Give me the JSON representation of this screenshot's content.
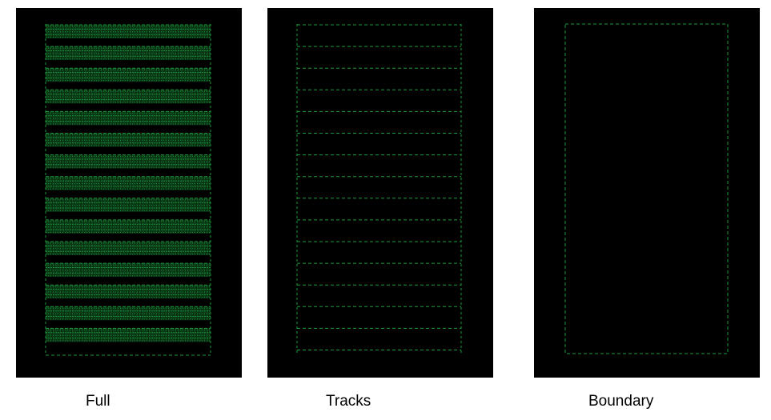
{
  "panels": [
    {
      "id": "full",
      "caption": "Full"
    },
    {
      "id": "tracks",
      "caption": "Tracks"
    },
    {
      "id": "boundary",
      "caption": "Boundary"
    }
  ],
  "colors": {
    "background": "#000000",
    "trace": "#1e9a3e",
    "trace_dim": "#0f5a22",
    "caption_text": "#000000"
  }
}
